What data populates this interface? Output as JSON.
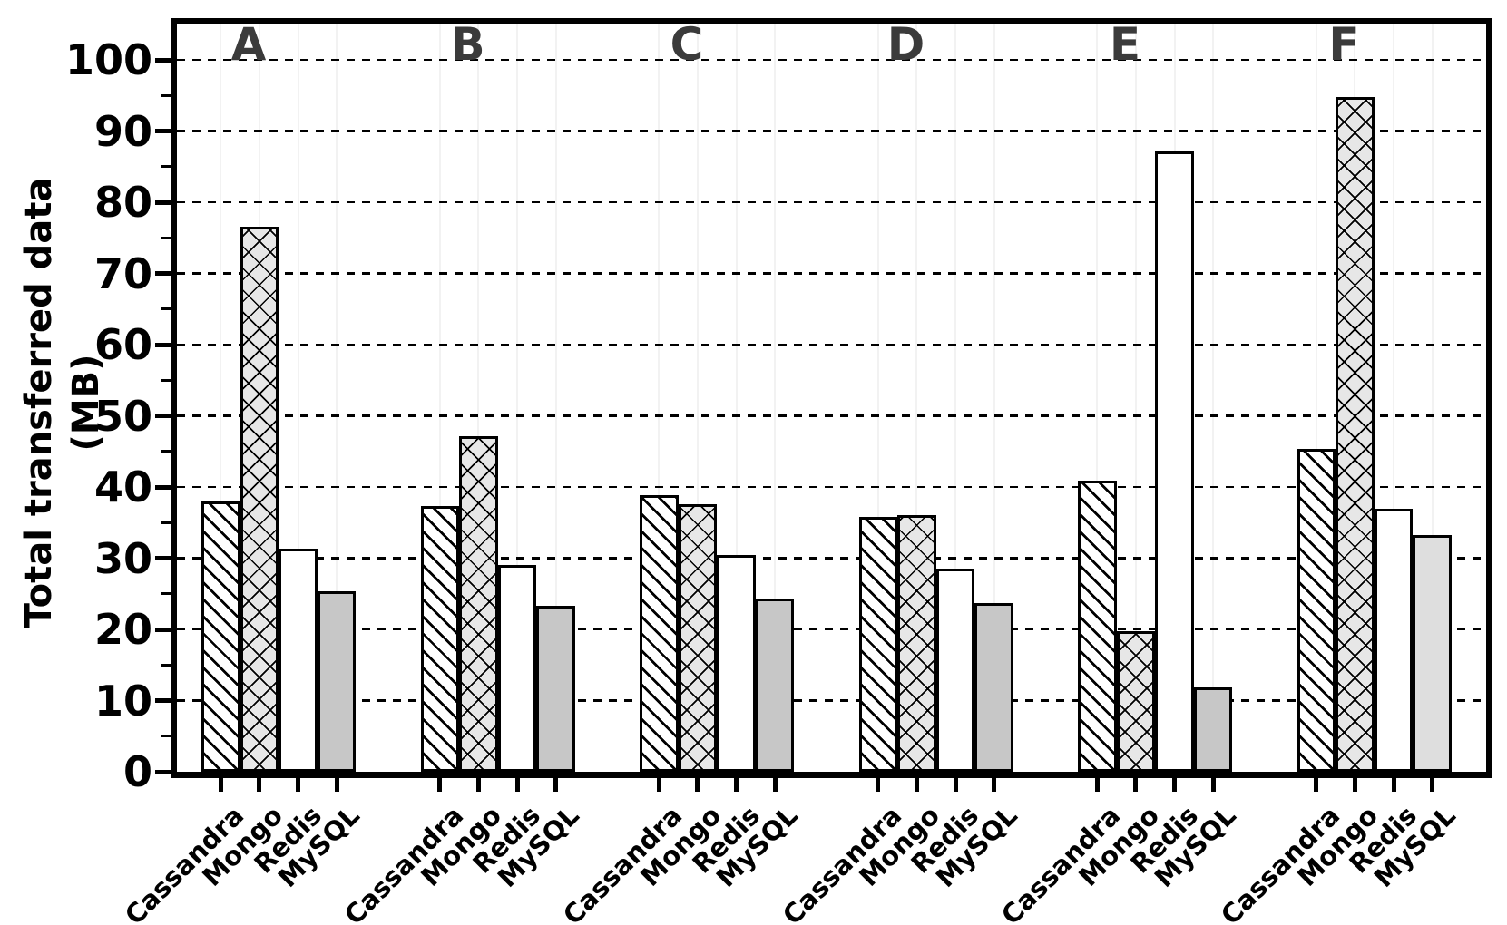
{
  "chart_data": {
    "type": "bar",
    "title": "",
    "ylabel": "Total transferred data (MB)",
    "xlabel": "",
    "ylim": [
      0,
      105
    ],
    "yticks": [
      0,
      10,
      20,
      30,
      40,
      50,
      60,
      70,
      80,
      90,
      100
    ],
    "ytick_labels": [
      "0",
      "10",
      "20",
      "30",
      "40",
      "50",
      "60",
      "70",
      "80",
      "90",
      "100"
    ],
    "grid": "horizontal-dashed",
    "legend": "none",
    "group_labels": [
      "A",
      "B",
      "C",
      "D",
      "E",
      "F"
    ],
    "bar_categories": [
      "Cassandra",
      "Mongo",
      "Redis",
      "MySQL"
    ],
    "series": [
      {
        "group": "A",
        "values": [
          38.0,
          76.5,
          31.3,
          25.3
        ]
      },
      {
        "group": "B",
        "values": [
          37.3,
          47.1,
          29.0,
          23.3
        ]
      },
      {
        "group": "C",
        "values": [
          38.9,
          37.6,
          30.4,
          24.3
        ]
      },
      {
        "group": "D",
        "values": [
          35.8,
          36.1,
          28.6,
          23.7
        ]
      },
      {
        "group": "E",
        "values": [
          40.9,
          19.7,
          87.1,
          11.8
        ]
      },
      {
        "group": "F",
        "values": [
          45.3,
          94.8,
          37.0,
          33.2
        ]
      }
    ],
    "bar_styles": [
      {
        "category": "Cassandra",
        "fill": "#ffffff",
        "pattern": "diagonal-hatch",
        "edge": "#000000"
      },
      {
        "category": "Mongo",
        "fill": "#e7e7e7",
        "pattern": "cross-hatch",
        "edge": "#000000"
      },
      {
        "category": "Redis",
        "fill": "#ffffff",
        "pattern": "none",
        "edge": "#000000"
      },
      {
        "category": "MySQL",
        "fill": "#c7c7c7",
        "pattern": "none",
        "edge": "#000000"
      }
    ],
    "style_overrides": [
      {
        "group": "F",
        "category": "MySQL",
        "fill": "#dedede"
      }
    ],
    "colors": {
      "axis": "#000000",
      "group_letter": "#3b3b3b",
      "background": "#ffffff"
    }
  }
}
